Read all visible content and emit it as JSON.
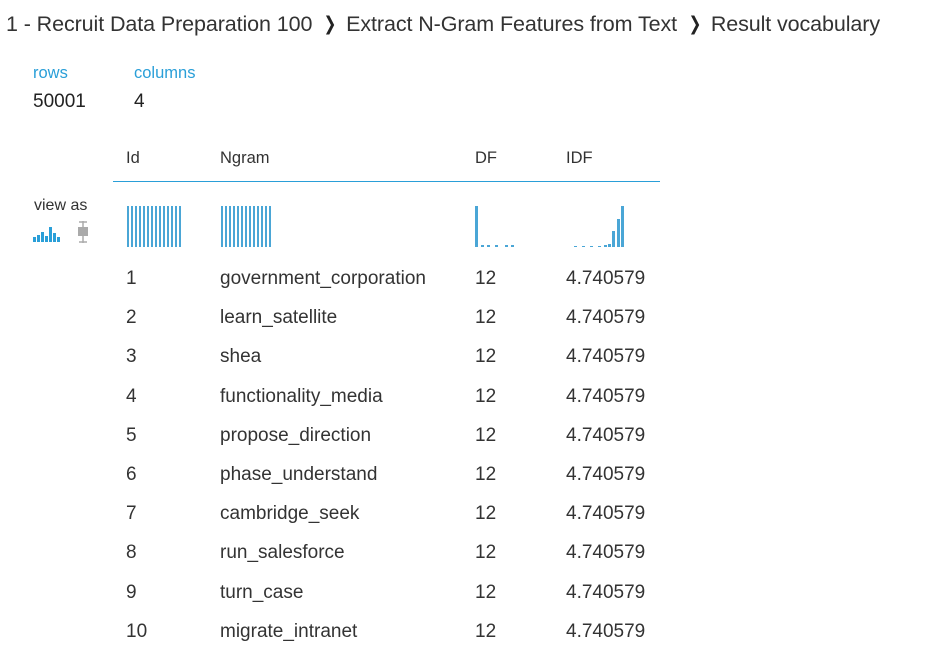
{
  "breadcrumb": {
    "items": [
      "1 - Recruit Data Preparation 100",
      "Extract N-Gram Features from Text",
      "Result vocabulary"
    ],
    "separator": "❯"
  },
  "summary": {
    "rows_label": "rows",
    "rows_value": "50001",
    "columns_label": "columns",
    "columns_value": "4"
  },
  "view_as": {
    "label": "view as",
    "icons": [
      "histogram-icon",
      "boxplot-icon"
    ]
  },
  "table": {
    "columns": [
      "Id",
      "Ngram",
      "DF",
      "IDF"
    ],
    "rows": [
      [
        "1",
        "government_corporation",
        "12",
        "4.740579"
      ],
      [
        "2",
        "learn_satellite",
        "12",
        "4.740579"
      ],
      [
        "3",
        "shea",
        "12",
        "4.740579"
      ],
      [
        "4",
        "functionality_media",
        "12",
        "4.740579"
      ],
      [
        "5",
        "propose_direction",
        "12",
        "4.740579"
      ],
      [
        "6",
        "phase_understand",
        "12",
        "4.740579"
      ],
      [
        "7",
        "cambridge_seek",
        "12",
        "4.740579"
      ],
      [
        "8",
        "run_salesforce",
        "12",
        "4.740579"
      ],
      [
        "9",
        "turn_case",
        "12",
        "4.740579"
      ],
      [
        "10",
        "migrate_intranet",
        "12",
        "4.740579"
      ]
    ]
  },
  "colors": {
    "accent": "#2a9fd8",
    "histogram": "#4aa6d6",
    "icon_gray": "#aaaaaa"
  }
}
